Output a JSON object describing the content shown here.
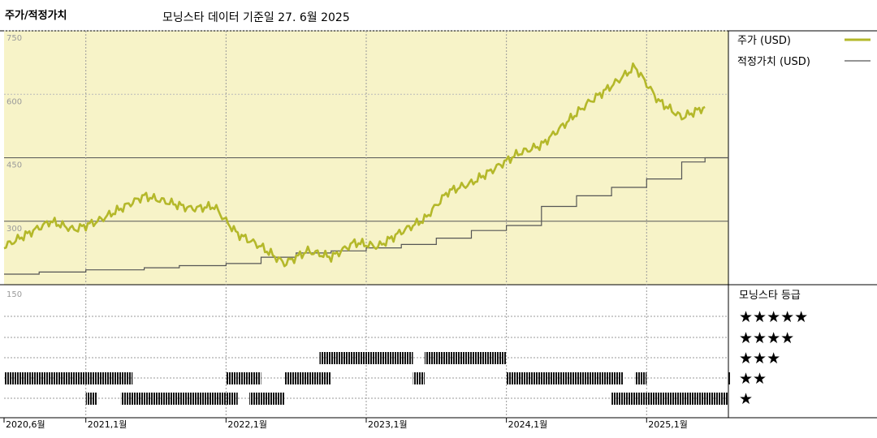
{
  "header": {
    "title": "주가/적정가치",
    "subtitle": "모닝스타 데이터 기준일 27. 6월 2025"
  },
  "chart_data": [
    {
      "type": "line",
      "title": "주가/적정가치",
      "subtitle": "모닝스타 데이터 기준일 27. 6월 2025",
      "y_ticks": [
        "750",
        "600",
        "450",
        "300"
      ],
      "ylim": [
        150,
        750
      ],
      "x_ticks": [
        "2020,6월",
        "2021,1월",
        "2022,1월",
        "2023,1월",
        "2024,1월",
        "2025,1월"
      ],
      "legend_position": "right",
      "colors": {
        "price": "#b4b82a",
        "fair_value": "#555555",
        "plot_bg": "#f7f3c8"
      },
      "series": [
        {
          "name": "주가 (USD)",
          "x": [
            "2020-06",
            "2020-08",
            "2020-10",
            "2020-12",
            "2021-02",
            "2021-04",
            "2021-06",
            "2021-08",
            "2021-10",
            "2021-12",
            "2022-01",
            "2022-02",
            "2022-04",
            "2022-06",
            "2022-08",
            "2022-10",
            "2022-12",
            "2023-02",
            "2023-04",
            "2023-06",
            "2023-08",
            "2023-10",
            "2023-12",
            "2024-02",
            "2024-04",
            "2024-06",
            "2024-08",
            "2024-10",
            "2024-12",
            "2025-02",
            "2025-04",
            "2025-06"
          ],
          "values": [
            240,
            270,
            300,
            280,
            300,
            330,
            360,
            345,
            330,
            335,
            300,
            270,
            240,
            200,
            230,
            215,
            250,
            240,
            275,
            305,
            370,
            390,
            425,
            460,
            480,
            530,
            580,
            620,
            665,
            585,
            545,
            570
          ]
        },
        {
          "name": "적정가치 (USD)",
          "x": [
            "2020-06",
            "2020-09",
            "2021-01",
            "2021-06",
            "2021-09",
            "2022-01",
            "2022-04",
            "2022-07",
            "2022-10",
            "2023-01",
            "2023-04",
            "2023-07",
            "2023-10",
            "2024-01",
            "2024-04",
            "2024-07",
            "2024-10",
            "2025-01",
            "2025-04",
            "2025-06"
          ],
          "values": [
            175,
            180,
            185,
            190,
            195,
            200,
            215,
            225,
            230,
            237,
            245,
            260,
            278,
            290,
            335,
            360,
            380,
            400,
            440,
            450
          ]
        }
      ]
    },
    {
      "type": "heatmap",
      "title": "모닝스타 등급",
      "y_ticks": [
        "150"
      ],
      "rows": [
        "★★★★★",
        "★★★★",
        "★★★",
        "★★",
        "★"
      ],
      "x_ticks": [
        "2020,6월",
        "2021,1월",
        "2022,1월",
        "2023,1월",
        "2024,1월",
        "2025,1월"
      ],
      "periods": [
        {
          "rating": "★★",
          "start": "2020-06",
          "end": "2021-04"
        },
        {
          "rating": "★",
          "start": "2021-01",
          "end": "2021-01"
        },
        {
          "rating": "★",
          "start": "2021-04",
          "end": "2021-12"
        },
        {
          "rating": "★★",
          "start": "2022-01",
          "end": "2022-01"
        },
        {
          "rating": "★",
          "start": "2022-01",
          "end": "2022-01"
        },
        {
          "rating": "★★",
          "start": "2022-02",
          "end": "2022-03"
        },
        {
          "rating": "★",
          "start": "2022-03",
          "end": "2022-05"
        },
        {
          "rating": "★★",
          "start": "2022-06",
          "end": "2022-09"
        },
        {
          "rating": "★★★",
          "start": "2022-09",
          "end": "2023-04"
        },
        {
          "rating": "★★",
          "start": "2023-05",
          "end": "2023-05"
        },
        {
          "rating": "★★★",
          "start": "2023-06",
          "end": "2023-12"
        },
        {
          "rating": "★★",
          "start": "2024-01",
          "end": "2024-10"
        },
        {
          "rating": "★",
          "start": "2024-10",
          "end": "2024-12"
        },
        {
          "rating": "★★",
          "start": "2024-12",
          "end": "2024-12"
        },
        {
          "rating": "★",
          "start": "2025-01",
          "end": "2026-01"
        },
        {
          "rating": "★★",
          "start": "2026-02",
          "end": "2026-05"
        }
      ]
    }
  ]
}
